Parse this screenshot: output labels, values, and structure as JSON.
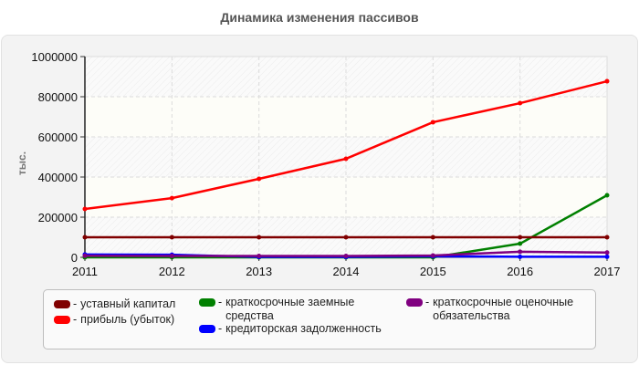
{
  "title": "Динамика изменения пассивов",
  "chart_data": {
    "type": "line",
    "title": "Динамика изменения пассивов",
    "xlabel": "",
    "ylabel": "тыс.",
    "ylim": [
      0,
      1000000
    ],
    "yticks": [
      "0",
      "200000",
      "400000",
      "600000",
      "800000",
      "1000000"
    ],
    "x": [
      "2011",
      "2012",
      "2013",
      "2014",
      "2015",
      "2016",
      "2017"
    ],
    "grid": true,
    "legend_position": "bottom",
    "series": [
      {
        "name": "уставный капитал",
        "color": "#800000",
        "values": [
          100000,
          100000,
          100000,
          100000,
          100000,
          100000,
          100000
        ]
      },
      {
        "name": "прибыль (убыток)",
        "color": "#ff0000",
        "values": [
          241000,
          295000,
          391000,
          491000,
          673000,
          768000,
          877000
        ]
      },
      {
        "name": "краткосрочные заемные средства",
        "color": "#008000",
        "values": [
          0,
          0,
          0,
          0,
          0,
          68000,
          309000
        ]
      },
      {
        "name": "кредиторская задолженность",
        "color": "#0000ff",
        "values": [
          14000,
          13000,
          2000,
          2000,
          5000,
          3000,
          3000
        ]
      },
      {
        "name": "краткосрочные оценочные обязательства",
        "color": "#800080",
        "values": [
          8000,
          7000,
          7000,
          7000,
          9000,
          28000,
          24000
        ]
      }
    ]
  },
  "legend": {
    "items": [
      {
        "label": "уставный капитал",
        "color": "#800000"
      },
      {
        "label": "прибыль (убыток)",
        "color": "#ff0000"
      },
      {
        "label": "краткосрочные заемные средства",
        "color": "#008000"
      },
      {
        "label": "кредиторская задолженность",
        "color": "#0000ff"
      },
      {
        "label": "краткосрочные оценочные обязательства",
        "color": "#800080"
      }
    ],
    "dash": "-"
  }
}
